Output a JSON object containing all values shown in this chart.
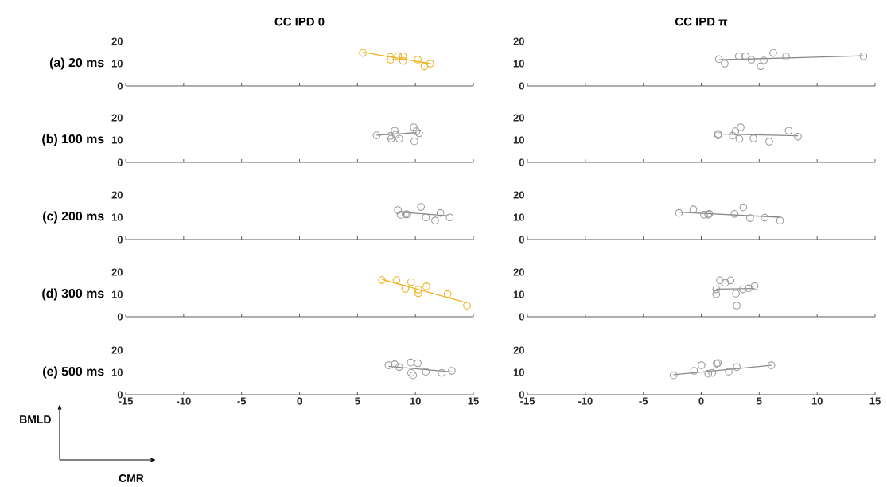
{
  "chart_data": [
    {
      "type": "scatter",
      "title": "CC IPD 0",
      "ylabel": "(a) 20 ms",
      "xlim": [
        -15,
        15
      ],
      "xticks": [
        -15,
        -10,
        -5,
        0,
        5,
        10,
        15
      ],
      "ylim": [
        0,
        20
      ],
      "yticks": [
        0,
        10,
        20
      ],
      "tick_labels": "y",
      "series": [
        {
          "color": "#edb120",
          "marker": "circle",
          "x": [
            5.46,
            7.84,
            7.84,
            8.49,
            8.94,
            8.94,
            10.2,
            10.78,
            11.28
          ],
          "values": [
            14.8,
            13.0,
            11.8,
            13.3,
            13.3,
            11.2,
            11.8,
            8.8,
            10.0
          ]
        },
        {
          "type": "line",
          "marker": "none",
          "color": "#edb120",
          "x": [
            5.46,
            11.28
          ],
          "values": [
            15.1,
            10.0
          ]
        }
      ]
    },
    {
      "type": "scatter",
      "title": "CC IPD π",
      "xlim": [
        -15,
        15
      ],
      "xticks": [
        -15,
        -10,
        -5,
        0,
        5,
        10,
        15
      ],
      "ylim": [
        0,
        20
      ],
      "yticks": [
        0,
        10,
        20
      ],
      "tick_labels": "y",
      "series": [
        {
          "color": "#999999",
          "marker": "circle",
          "x": [
            1.52,
            2.02,
            3.24,
            3.82,
            4.32,
            5.4,
            5.13,
            6.21,
            7.31,
            14.0
          ],
          "values": [
            12.0,
            10.0,
            13.3,
            13.3,
            11.8,
            11.4,
            8.8,
            14.8,
            13.2,
            13.3
          ]
        },
        {
          "type": "line",
          "marker": "none",
          "color": "#888888",
          "x": [
            1.52,
            14.0
          ],
          "values": [
            11.7,
            13.5
          ]
        }
      ]
    },
    {
      "type": "scatter",
      "ylabel": "(b) 100 ms",
      "xlim": [
        -15,
        15
      ],
      "xticks": [
        -15,
        -10,
        -5,
        0,
        5,
        10,
        15
      ],
      "ylim": [
        0,
        20
      ],
      "yticks": [
        0,
        10,
        20
      ],
      "tick_labels": "y",
      "series": [
        {
          "color": "#999999",
          "marker": "circle",
          "x": [
            6.65,
            8.21,
            7.84,
            7.91,
            8.3,
            8.6,
            9.86,
            10.09,
            10.32,
            9.91
          ],
          "values": [
            12.1,
            14.2,
            11.8,
            10.6,
            12.4,
            10.6,
            15.7,
            13.9,
            13.0,
            9.4
          ]
        },
        {
          "type": "line",
          "marker": "none",
          "color": "#888888",
          "x": [
            6.65,
            10.09
          ],
          "values": [
            12.2,
            13.3
          ]
        }
      ]
    },
    {
      "type": "scatter",
      "xlim": [
        -15,
        15
      ],
      "xticks": [
        -15,
        -10,
        -5,
        0,
        5,
        10,
        15
      ],
      "ylim": [
        0,
        20
      ],
      "yticks": [
        0,
        10,
        20
      ],
      "tick_labels": "y",
      "series": [
        {
          "color": "#999999",
          "marker": "circle",
          "x": [
            1.45,
            1.45,
            2.94,
            3.4,
            2.71,
            3.29,
            4.5,
            5.86,
            7.54,
            8.34
          ],
          "values": [
            12.7,
            12.1,
            13.9,
            15.7,
            11.9,
            10.5,
            10.7,
            9.3,
            14.2,
            11.5
          ]
        },
        {
          "type": "line",
          "marker": "none",
          "color": "#888888",
          "x": [
            1.45,
            8.34
          ],
          "values": [
            12.7,
            11.9
          ]
        }
      ]
    },
    {
      "type": "scatter",
      "ylabel": "(c) 200 ms",
      "xlim": [
        -15,
        15
      ],
      "xticks": [
        -15,
        -10,
        -5,
        0,
        5,
        10,
        15
      ],
      "ylim": [
        0,
        20
      ],
      "yticks": [
        0,
        10,
        20
      ],
      "tick_labels": "y",
      "series": [
        {
          "color": "#999999",
          "marker": "circle",
          "x": [
            8.49,
            8.72,
            9.15,
            9.3,
            10.48,
            10.9,
            11.7,
            12.16,
            12.96
          ],
          "values": [
            13.2,
            11.1,
            11.3,
            11.3,
            14.6,
            9.9,
            8.5,
            11.9,
            9.9
          ]
        },
        {
          "type": "line",
          "marker": "none",
          "color": "#888888",
          "x": [
            8.49,
            12.96
          ],
          "values": [
            12.4,
            10.6
          ]
        }
      ]
    },
    {
      "type": "scatter",
      "xlim": [
        -15,
        15
      ],
      "xticks": [
        -15,
        -10,
        -5,
        0,
        5,
        10,
        15
      ],
      "ylim": [
        0,
        20
      ],
      "yticks": [
        0,
        10,
        20
      ],
      "tick_labels": "y",
      "series": [
        {
          "color": "#999999",
          "marker": "circle",
          "x": [
            -1.93,
            -0.69,
            0.23,
            0.69,
            0.6,
            2.87,
            3.63,
            4.21,
            5.47,
            6.8
          ],
          "values": [
            11.9,
            13.5,
            11.1,
            11.5,
            11.1,
            11.5,
            14.4,
            9.6,
            9.8,
            8.5
          ]
        },
        {
          "type": "line",
          "marker": "none",
          "color": "#888888",
          "x": [
            -1.93,
            6.8
          ],
          "values": [
            12.3,
            10.0
          ]
        }
      ]
    },
    {
      "type": "scatter",
      "ylabel": "(d) 300 ms",
      "xlim": [
        -15,
        15
      ],
      "xticks": [
        -15,
        -10,
        -5,
        0,
        5,
        10,
        15
      ],
      "ylim": [
        0,
        20
      ],
      "yticks": [
        0,
        10,
        20
      ],
      "tick_labels": "y",
      "series": [
        {
          "color": "#edb120",
          "marker": "circle",
          "x": [
            7.11,
            8.37,
            9.63,
            9.13,
            10.25,
            10.25,
            10.94,
            12.78,
            14.45
          ],
          "values": [
            16.4,
            16.4,
            15.5,
            12.5,
            12.1,
            10.5,
            13.6,
            10.1,
            5.0
          ]
        },
        {
          "type": "line",
          "marker": "none",
          "color": "#edb120",
          "x": [
            7.11,
            14.45
          ],
          "values": [
            16.7,
            6.2
          ]
        }
      ]
    },
    {
      "type": "scatter",
      "xlim": [
        -15,
        15
      ],
      "xticks": [
        -15,
        -10,
        -5,
        0,
        5,
        10,
        15
      ],
      "ylim": [
        0,
        20
      ],
      "yticks": [
        0,
        10,
        20
      ],
      "tick_labels": "y",
      "series": [
        {
          "color": "#999999",
          "marker": "circle",
          "x": [
            1.61,
            2.07,
            2.53,
            1.29,
            1.29,
            2.99,
            3.59,
            4.09,
            4.6,
            3.06
          ],
          "values": [
            16.3,
            15.2,
            16.3,
            12.3,
            10.1,
            10.4,
            12.3,
            12.7,
            13.7,
            5.0
          ]
        },
        {
          "type": "line",
          "marker": "none",
          "color": "#888888",
          "x": [
            1.29,
            4.6
          ],
          "values": [
            12.4,
            12.6
          ]
        }
      ]
    },
    {
      "type": "scatter",
      "ylabel": "(e) 500 ms",
      "xlim": [
        -15,
        15
      ],
      "xticks": [
        -15,
        -10,
        -5,
        0,
        5,
        10,
        15
      ],
      "ylim": [
        0,
        20
      ],
      "yticks": [
        0,
        10,
        20
      ],
      "annotations": [
        "BMLD",
        "CMR"
      ],
      "series": [
        {
          "color": "#999999",
          "marker": "circle",
          "x": [
            7.68,
            8.21,
            8.6,
            9.59,
            10.2,
            9.63,
            9.8,
            10.9,
            12.27,
            13.14
          ],
          "values": [
            13.2,
            13.6,
            12.4,
            14.4,
            14.1,
            9.8,
            8.7,
            10.3,
            9.8,
            10.7
          ]
        },
        {
          "type": "line",
          "marker": "none",
          "color": "#888888",
          "x": [
            7.68,
            13.14
          ],
          "values": [
            12.7,
            10.2
          ]
        }
      ]
    },
    {
      "type": "scatter",
      "xlim": [
        -15,
        15
      ],
      "xticks": [
        -15,
        -10,
        -5,
        0,
        5,
        10,
        15
      ],
      "ylim": [
        0,
        20
      ],
      "yticks": [
        0,
        10,
        20
      ],
      "series": [
        {
          "color": "#999999",
          "marker": "circle",
          "x": [
            -2.39,
            -0.62,
            0.02,
            0.6,
            0.94,
            1.33,
            1.43,
            2.37,
            3.06,
            6.05
          ],
          "values": [
            8.7,
            10.7,
            13.2,
            9.4,
            9.8,
            13.9,
            14.2,
            10.3,
            12.4,
            13.2
          ]
        },
        {
          "type": "line",
          "marker": "none",
          "color": "#888888",
          "x": [
            -2.39,
            6.05
          ],
          "values": [
            9.0,
            13.2
          ]
        }
      ]
    }
  ]
}
